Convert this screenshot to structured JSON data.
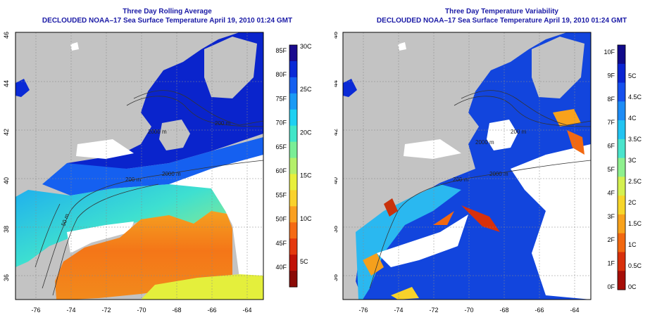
{
  "left_panel": {
    "title": "Three Day Rolling Average",
    "subtitle": "DECLOUDED NOAA–17 Sea Surface Temperature April 19, 2010 01:24 GMT",
    "colorbar": {
      "left_ticks": [
        "85F",
        "80F",
        "75F",
        "70F",
        "65F",
        "60F",
        "55F",
        "50F",
        "45F",
        "40F"
      ],
      "right_ticks": [
        "30C",
        "25C",
        "20C",
        "15C",
        "10C",
        "5C"
      ],
      "colors": [
        "#1a0b8e",
        "#0a2ad6",
        "#1560f0",
        "#1a9af5",
        "#1dd0f2",
        "#40e6c8",
        "#7aee96",
        "#b4f06a",
        "#e8ef3c",
        "#f9d22c",
        "#faa020",
        "#f56a14",
        "#e4380d",
        "#c01208",
        "#8a0a06"
      ]
    },
    "contour_labels": [
      "200 m",
      "2000 m",
      "200 m",
      "2000 m",
      "50 m"
    ]
  },
  "right_panel": {
    "title": "Three Day Temperature Variability",
    "subtitle": "DECLOUDED NOAA–17 Sea Surface Temperature April 19, 2010 01:24 GMT",
    "colorbar": {
      "left_ticks": [
        "10F",
        "9F",
        "8F",
        "7F",
        "6F",
        "5F",
        "4F",
        "3F",
        "2F",
        "1F",
        "0F"
      ],
      "right_ticks": [
        "5C",
        "4.5C",
        "4C",
        "3.5C",
        "3C",
        "2.5C",
        "2C",
        "1.5C",
        "1C",
        "0.5C",
        "0C"
      ],
      "colors": [
        "#100a8a",
        "#0a24d2",
        "#1550ee",
        "#1d8cf6",
        "#22c4f2",
        "#4ae4cc",
        "#8ef08e",
        "#d4f050",
        "#f7d62a",
        "#f8a21c",
        "#f26810",
        "#d8300b",
        "#a60d07"
      ]
    },
    "contour_labels": [
      "200 m",
      "2000 m",
      "200 m",
      "2000 m"
    ]
  },
  "map": {
    "x_ticks": [
      "-76",
      "-74",
      "-72",
      "-70",
      "-68",
      "-66",
      "-64"
    ],
    "y_ticks": [
      "46",
      "44",
      "42",
      "40",
      "38",
      "36"
    ],
    "land_color": "#c3c3c3"
  }
}
